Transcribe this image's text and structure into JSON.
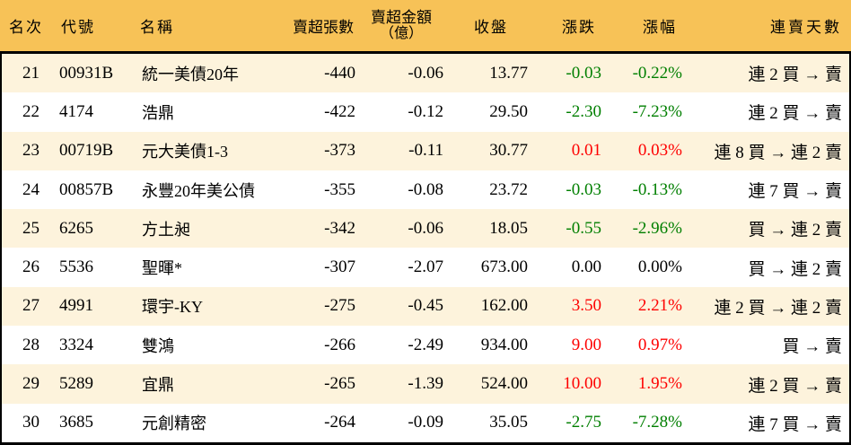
{
  "chart_data": {
    "type": "table",
    "columns": [
      {
        "key": "rank",
        "label": "名次"
      },
      {
        "key": "code",
        "label": "代號"
      },
      {
        "key": "name",
        "label": "名稱"
      },
      {
        "key": "sell_volume",
        "label": "賣超張數"
      },
      {
        "key": "sell_amount",
        "label": "賣超金額",
        "label2": "（億）"
      },
      {
        "key": "close",
        "label": "收盤"
      },
      {
        "key": "change",
        "label": "漲跌"
      },
      {
        "key": "change_pct",
        "label": "漲幅"
      },
      {
        "key": "streak",
        "label": "連賣天數"
      }
    ],
    "rows": [
      {
        "rank": "21",
        "code": "00931B",
        "name": "統一美債20年",
        "sell_volume": "-440",
        "sell_amount": "-0.06",
        "close": "13.77",
        "change": "-0.03",
        "change_pct": "-0.22%",
        "trend": "down",
        "streak": "連 2 買 → 賣"
      },
      {
        "rank": "22",
        "code": "4174",
        "name": "浩鼎",
        "sell_volume": "-422",
        "sell_amount": "-0.12",
        "close": "29.50",
        "change": "-2.30",
        "change_pct": "-7.23%",
        "trend": "down",
        "streak": "連 2 買 → 賣"
      },
      {
        "rank": "23",
        "code": "00719B",
        "name": "元大美債1-3",
        "sell_volume": "-373",
        "sell_amount": "-0.11",
        "close": "30.77",
        "change": "0.01",
        "change_pct": "0.03%",
        "trend": "up",
        "streak": "連 8 買 → 連 2 賣"
      },
      {
        "rank": "24",
        "code": "00857B",
        "name": "永豐20年美公債",
        "sell_volume": "-355",
        "sell_amount": "-0.08",
        "close": "23.72",
        "change": "-0.03",
        "change_pct": "-0.13%",
        "trend": "down",
        "streak": "連 7 買 → 賣"
      },
      {
        "rank": "25",
        "code": "6265",
        "name": "方土昶",
        "sell_volume": "-342",
        "sell_amount": "-0.06",
        "close": "18.05",
        "change": "-0.55",
        "change_pct": "-2.96%",
        "trend": "down",
        "streak": "買 → 連 2 賣"
      },
      {
        "rank": "26",
        "code": "5536",
        "name": "聖暉*",
        "sell_volume": "-307",
        "sell_amount": "-2.07",
        "close": "673.00",
        "change": "0.00",
        "change_pct": "0.00%",
        "trend": "flat",
        "streak": "買 → 連 2 賣"
      },
      {
        "rank": "27",
        "code": "4991",
        "name": "環宇-KY",
        "sell_volume": "-275",
        "sell_amount": "-0.45",
        "close": "162.00",
        "change": "3.50",
        "change_pct": "2.21%",
        "trend": "up",
        "streak": "連 2 買 → 連 2 賣"
      },
      {
        "rank": "28",
        "code": "3324",
        "name": "雙鴻",
        "sell_volume": "-266",
        "sell_amount": "-2.49",
        "close": "934.00",
        "change": "9.00",
        "change_pct": "0.97%",
        "trend": "up",
        "streak": "買 → 賣"
      },
      {
        "rank": "29",
        "code": "5289",
        "name": "宜鼎",
        "sell_volume": "-265",
        "sell_amount": "-1.39",
        "close": "524.00",
        "change": "10.00",
        "change_pct": "1.95%",
        "trend": "up",
        "streak": "連 2 買 → 賣"
      },
      {
        "rank": "30",
        "code": "3685",
        "name": "元創精密",
        "sell_volume": "-264",
        "sell_amount": "-0.09",
        "close": "35.05",
        "change": "-2.75",
        "change_pct": "-7.28%",
        "trend": "down",
        "streak": "連 7 買 → 賣"
      }
    ]
  },
  "colors": {
    "header_bg": "#f7c257",
    "row_alt_bg": "#fdf3dc",
    "row_bg": "#ffffff",
    "trend_up": "#fe0000",
    "trend_down": "#007f00",
    "trend_flat": "#000000",
    "border": "#000000"
  }
}
